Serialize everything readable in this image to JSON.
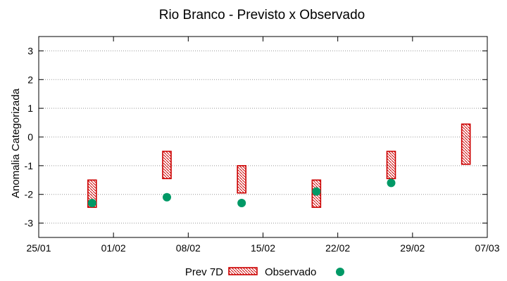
{
  "chart_data": {
    "type": "scatter",
    "title": "Rio Branco - Previsto x Observado",
    "xlabel": "",
    "ylabel": "Anomalia Categorizada",
    "xlim": [
      "25/01",
      "07/03"
    ],
    "ylim": [
      -3.5,
      3.5
    ],
    "x_ticks": [
      "25/01",
      "01/02",
      "08/02",
      "15/02",
      "22/02",
      "29/02",
      "07/03"
    ],
    "y_ticks": [
      -3,
      -2,
      -1,
      0,
      1,
      2,
      3
    ],
    "grid": true,
    "legend_position": "bottom",
    "series": [
      {
        "name": "Prev 7D",
        "kind": "range-box",
        "color": "#cc0000",
        "points": [
          {
            "x": "30/01",
            "low": -2.45,
            "high": -1.5
          },
          {
            "x": "06/02",
            "low": -1.45,
            "high": -0.5
          },
          {
            "x": "13/02",
            "low": -1.95,
            "high": -1.0
          },
          {
            "x": "20/02",
            "low": -2.45,
            "high": -1.5
          },
          {
            "x": "27/02",
            "low": -1.45,
            "high": -0.5
          },
          {
            "x": "05/03",
            "low": -0.95,
            "high": 0.45
          }
        ]
      },
      {
        "name": "Observado",
        "kind": "point",
        "color": "#009966",
        "points": [
          {
            "x": "30/01",
            "y": -2.3
          },
          {
            "x": "06/02",
            "y": -2.1
          },
          {
            "x": "13/02",
            "y": -2.3
          },
          {
            "x": "20/02",
            "y": -1.9
          },
          {
            "x": "27/02",
            "y": -1.6
          }
        ]
      }
    ]
  }
}
